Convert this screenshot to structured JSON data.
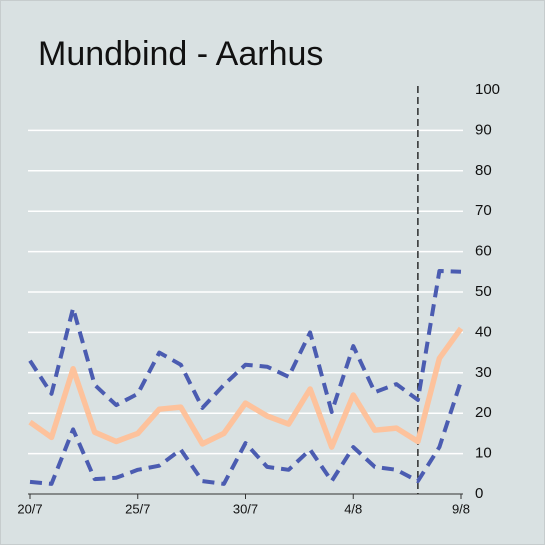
{
  "chart_data": {
    "type": "line",
    "title": "Mundbind - Aarhus",
    "categories": [
      "20/7",
      null,
      null,
      null,
      null,
      "25/7",
      null,
      null,
      null,
      null,
      "30/7",
      null,
      null,
      null,
      null,
      "4/8",
      null,
      null,
      null,
      null,
      "9/8"
    ],
    "series": [
      {
        "color": "#4b5cb1",
        "dashed": true,
        "values": [
          33,
          24.8,
          46,
          27,
          22,
          24.8,
          35,
          32,
          21.3,
          27,
          32,
          31.5,
          29,
          40,
          20.3,
          36.6,
          25.2,
          27.2,
          23.3,
          55.2,
          55
        ]
      },
      {
        "color": "#4b5cb1",
        "dashed": true,
        "values": [
          3,
          2.5,
          16,
          3.7,
          4,
          6,
          7,
          11,
          3.2,
          2.5,
          12.6,
          6.7,
          6,
          11,
          3.2,
          11.6,
          6.7,
          6,
          3.2,
          11.6,
          28
        ]
      },
      {
        "color": "#fdc29c",
        "dashed": false,
        "values": [
          17.8,
          14,
          31,
          15.3,
          13,
          15,
          21,
          21.5,
          12.4,
          15,
          22.5,
          19.3,
          17.3,
          26,
          11.6,
          24.5,
          15.8,
          16.3,
          13,
          33.6,
          41
        ]
      }
    ],
    "ylim": [
      0,
      100
    ],
    "yticks": [
      0,
      10,
      20,
      30,
      40,
      50,
      60,
      70,
      80,
      90,
      100
    ],
    "grid": true,
    "vline_category": 18
  }
}
